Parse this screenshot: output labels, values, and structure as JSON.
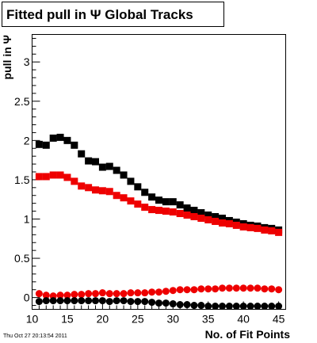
{
  "chart_data": {
    "type": "scatter",
    "title": "Fitted pull in Ψ   Global Tracks",
    "xlabel": "No. of Fit Points",
    "ylabel": "pull in Ψ",
    "xlim": [
      10,
      46
    ],
    "ylim": [
      -0.15,
      3.35
    ],
    "xticks": [
      10,
      15,
      20,
      25,
      30,
      35,
      40,
      45
    ],
    "yticks": [
      0,
      0.5,
      1,
      1.5,
      2,
      2.5,
      3
    ],
    "grid": false,
    "legend": "none",
    "timestamp": "Thu Oct 27 20:13:54 2011",
    "colors": {
      "black": "#000000",
      "red": "#ee0000"
    },
    "x": [
      11,
      12,
      13,
      14,
      15,
      16,
      17,
      18,
      19,
      20,
      21,
      22,
      23,
      24,
      25,
      26,
      27,
      28,
      29,
      30,
      31,
      32,
      33,
      34,
      35,
      36,
      37,
      38,
      39,
      40,
      41,
      42,
      43,
      44,
      45
    ],
    "series": [
      {
        "marker": "square",
        "color": "black",
        "values": [
          1.95,
          1.94,
          2.03,
          2.04,
          2.0,
          1.94,
          1.83,
          1.74,
          1.73,
          1.66,
          1.67,
          1.62,
          1.56,
          1.48,
          1.41,
          1.34,
          1.28,
          1.24,
          1.22,
          1.22,
          1.18,
          1.14,
          1.11,
          1.08,
          1.05,
          1.03,
          1.01,
          0.98,
          0.96,
          0.94,
          0.92,
          0.91,
          0.89,
          0.88,
          0.86
        ]
      },
      {
        "marker": "square",
        "color": "red",
        "values": [
          1.54,
          1.54,
          1.56,
          1.56,
          1.53,
          1.48,
          1.42,
          1.4,
          1.37,
          1.36,
          1.35,
          1.3,
          1.27,
          1.23,
          1.19,
          1.15,
          1.12,
          1.11,
          1.1,
          1.09,
          1.07,
          1.05,
          1.03,
          1.01,
          0.99,
          0.97,
          0.95,
          0.94,
          0.92,
          0.9,
          0.89,
          0.88,
          0.86,
          0.85,
          0.83
        ]
      },
      {
        "marker": "circle",
        "color": "red",
        "values": [
          0.05,
          0.03,
          0.02,
          0.03,
          0.03,
          0.04,
          0.04,
          0.05,
          0.05,
          0.06,
          0.05,
          0.05,
          0.05,
          0.06,
          0.06,
          0.06,
          0.07,
          0.07,
          0.08,
          0.09,
          0.1,
          0.1,
          0.1,
          0.11,
          0.11,
          0.11,
          0.12,
          0.12,
          0.12,
          0.12,
          0.12,
          0.12,
          0.11,
          0.11,
          0.1
        ]
      },
      {
        "marker": "circle",
        "color": "black",
        "values": [
          -0.05,
          -0.04,
          -0.04,
          -0.04,
          -0.04,
          -0.04,
          -0.04,
          -0.04,
          -0.04,
          -0.04,
          -0.05,
          -0.04,
          -0.04,
          -0.05,
          -0.05,
          -0.05,
          -0.06,
          -0.07,
          -0.07,
          -0.08,
          -0.09,
          -0.09,
          -0.1,
          -0.1,
          -0.11,
          -0.11,
          -0.11,
          -0.11,
          -0.11,
          -0.11,
          -0.11,
          -0.11,
          -0.11,
          -0.11,
          -0.11
        ]
      }
    ]
  }
}
